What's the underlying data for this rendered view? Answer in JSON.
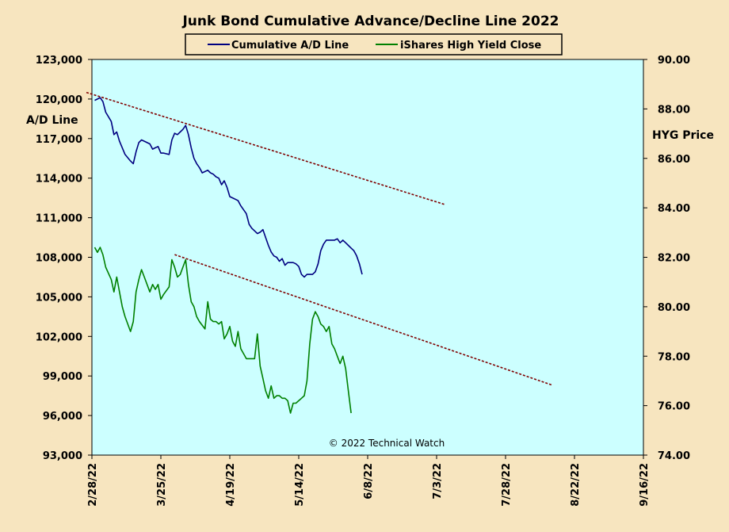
{
  "chart_data": {
    "type": "line",
    "title": "Junk Bond Cumulative  Advance/Decline  Line  2022",
    "ylabel_left": "A/D Line",
    "ylabel_right": "HYG Price",
    "annotation": "© 2022 Technical Watch",
    "legend_position": "top",
    "grid": false,
    "plot_background": "#ccffff",
    "y_left": {
      "min": 93000,
      "max": 123000,
      "ticks": [
        "93,000",
        "96,000",
        "99,000",
        "102,000",
        "105,000",
        "108,000",
        "111,000",
        "114,000",
        "117,000",
        "120,000",
        "123,000"
      ]
    },
    "y_right": {
      "min": 74,
      "max": 90,
      "ticks": [
        "74.00",
        "76.00",
        "78.00",
        "80.00",
        "82.00",
        "84.00",
        "86.00",
        "88.00",
        "90.00"
      ]
    },
    "x": {
      "min": "2022-02-28",
      "max": "2022-09-16",
      "ticks": [
        "2/28/22",
        "3/25/22",
        "4/19/22",
        "5/14/22",
        "6/8/22",
        "7/3/22",
        "7/28/22",
        "8/22/22",
        "9/16/22"
      ]
    },
    "series": [
      {
        "name": "Cumulative A/D Line",
        "axis": "left",
        "color": "#000080",
        "points": [
          [
            "2022-03-01",
            119900
          ],
          [
            "2022-03-02",
            120000
          ],
          [
            "2022-03-03",
            120100
          ],
          [
            "2022-03-04",
            119800
          ],
          [
            "2022-03-05",
            119000
          ],
          [
            "2022-03-07",
            118300
          ],
          [
            "2022-03-08",
            117300
          ],
          [
            "2022-03-09",
            117500
          ],
          [
            "2022-03-10",
            116800
          ],
          [
            "2022-03-11",
            116300
          ],
          [
            "2022-03-12",
            115800
          ],
          [
            "2022-03-14",
            115300
          ],
          [
            "2022-03-15",
            115100
          ],
          [
            "2022-03-16",
            116000
          ],
          [
            "2022-03-17",
            116700
          ],
          [
            "2022-03-18",
            116900
          ],
          [
            "2022-03-19",
            116800
          ],
          [
            "2022-03-21",
            116600
          ],
          [
            "2022-03-22",
            116200
          ],
          [
            "2022-03-23",
            116300
          ],
          [
            "2022-03-24",
            116400
          ],
          [
            "2022-03-25",
            115900
          ],
          [
            "2022-03-26",
            115900
          ],
          [
            "2022-03-28",
            115800
          ],
          [
            "2022-03-29",
            116900
          ],
          [
            "2022-03-30",
            117400
          ],
          [
            "2022-03-31",
            117300
          ],
          [
            "2022-04-01",
            117500
          ],
          [
            "2022-04-02",
            117700
          ],
          [
            "2022-04-03",
            118000
          ],
          [
            "2022-04-04",
            117300
          ],
          [
            "2022-04-05",
            116300
          ],
          [
            "2022-04-06",
            115500
          ],
          [
            "2022-04-07",
            115100
          ],
          [
            "2022-04-08",
            114800
          ],
          [
            "2022-04-09",
            114400
          ],
          [
            "2022-04-11",
            114600
          ],
          [
            "2022-04-12",
            114400
          ],
          [
            "2022-04-13",
            114300
          ],
          [
            "2022-04-14",
            114100
          ],
          [
            "2022-04-15",
            114000
          ],
          [
            "2022-04-16",
            113500
          ],
          [
            "2022-04-17",
            113800
          ],
          [
            "2022-04-18",
            113300
          ],
          [
            "2022-04-19",
            112600
          ],
          [
            "2022-04-20",
            112500
          ],
          [
            "2022-04-21",
            112400
          ],
          [
            "2022-04-22",
            112300
          ],
          [
            "2022-04-23",
            111900
          ],
          [
            "2022-04-25",
            111300
          ],
          [
            "2022-04-26",
            110500
          ],
          [
            "2022-04-27",
            110200
          ],
          [
            "2022-04-28",
            110000
          ],
          [
            "2022-04-29",
            109800
          ],
          [
            "2022-04-30",
            109900
          ],
          [
            "2022-05-01",
            110100
          ],
          [
            "2022-05-02",
            109500
          ],
          [
            "2022-05-03",
            108900
          ],
          [
            "2022-05-04",
            108400
          ],
          [
            "2022-05-05",
            108100
          ],
          [
            "2022-05-06",
            108000
          ],
          [
            "2022-05-07",
            107700
          ],
          [
            "2022-05-08",
            107900
          ],
          [
            "2022-05-09",
            107400
          ],
          [
            "2022-05-10",
            107600
          ],
          [
            "2022-05-11",
            107600
          ],
          [
            "2022-05-12",
            107600
          ],
          [
            "2022-05-13",
            107500
          ],
          [
            "2022-05-14",
            107300
          ],
          [
            "2022-05-15",
            106700
          ],
          [
            "2022-05-16",
            106500
          ],
          [
            "2022-05-17",
            106700
          ],
          [
            "2022-05-18",
            106700
          ],
          [
            "2022-05-19",
            106700
          ],
          [
            "2022-05-20",
            106900
          ],
          [
            "2022-05-21",
            107500
          ],
          [
            "2022-05-22",
            108500
          ],
          [
            "2022-05-23",
            109000
          ],
          [
            "2022-05-24",
            109300
          ],
          [
            "2022-05-25",
            109300
          ],
          [
            "2022-05-26",
            109300
          ],
          [
            "2022-05-27",
            109300
          ],
          [
            "2022-05-28",
            109400
          ],
          [
            "2022-05-29",
            109100
          ],
          [
            "2022-05-30",
            109300
          ],
          [
            "2022-05-31",
            109100
          ],
          [
            "2022-06-01",
            108900
          ],
          [
            "2022-06-02",
            108700
          ],
          [
            "2022-06-03",
            108500
          ],
          [
            "2022-06-04",
            108100
          ],
          [
            "2022-06-05",
            107500
          ],
          [
            "2022-06-06",
            106700
          ]
        ]
      },
      {
        "name": "iShares High Yield Close",
        "axis": "right",
        "color": "#008000",
        "points": [
          [
            "2022-03-01",
            82.4
          ],
          [
            "2022-03-02",
            82.2
          ],
          [
            "2022-03-03",
            82.4
          ],
          [
            "2022-03-04",
            82.1
          ],
          [
            "2022-03-05",
            81.6
          ],
          [
            "2022-03-07",
            81.1
          ],
          [
            "2022-03-08",
            80.6
          ],
          [
            "2022-03-09",
            81.2
          ],
          [
            "2022-03-10",
            80.6
          ],
          [
            "2022-03-11",
            80.0
          ],
          [
            "2022-03-12",
            79.6
          ],
          [
            "2022-03-14",
            79.0
          ],
          [
            "2022-03-15",
            79.4
          ],
          [
            "2022-03-16",
            80.6
          ],
          [
            "2022-03-17",
            81.1
          ],
          [
            "2022-03-18",
            81.5
          ],
          [
            "2022-03-19",
            81.2
          ],
          [
            "2022-03-21",
            80.6
          ],
          [
            "2022-03-22",
            80.9
          ],
          [
            "2022-03-23",
            80.7
          ],
          [
            "2022-03-24",
            80.9
          ],
          [
            "2022-03-25",
            80.3
          ],
          [
            "2022-03-26",
            80.5
          ],
          [
            "2022-03-28",
            80.8
          ],
          [
            "2022-03-29",
            81.9
          ],
          [
            "2022-03-30",
            81.6
          ],
          [
            "2022-03-31",
            81.2
          ],
          [
            "2022-04-01",
            81.3
          ],
          [
            "2022-04-02",
            81.6
          ],
          [
            "2022-04-03",
            81.9
          ],
          [
            "2022-04-04",
            80.9
          ],
          [
            "2022-04-05",
            80.2
          ],
          [
            "2022-04-06",
            80.0
          ],
          [
            "2022-04-07",
            79.6
          ],
          [
            "2022-04-08",
            79.4
          ],
          [
            "2022-04-10",
            79.1
          ],
          [
            "2022-04-11",
            80.2
          ],
          [
            "2022-04-12",
            79.5
          ],
          [
            "2022-04-13",
            79.4
          ],
          [
            "2022-04-14",
            79.4
          ],
          [
            "2022-04-15",
            79.3
          ],
          [
            "2022-04-16",
            79.4
          ],
          [
            "2022-04-17",
            78.7
          ],
          [
            "2022-04-18",
            78.9
          ],
          [
            "2022-04-19",
            79.2
          ],
          [
            "2022-04-20",
            78.6
          ],
          [
            "2022-04-21",
            78.4
          ],
          [
            "2022-04-22",
            79.0
          ],
          [
            "2022-04-23",
            78.3
          ],
          [
            "2022-04-24",
            78.1
          ],
          [
            "2022-04-25",
            77.9
          ],
          [
            "2022-04-26",
            77.9
          ],
          [
            "2022-04-27",
            77.9
          ],
          [
            "2022-04-28",
            77.9
          ],
          [
            "2022-04-29",
            78.9
          ],
          [
            "2022-04-30",
            77.6
          ],
          [
            "2022-05-01",
            77.1
          ],
          [
            "2022-05-02",
            76.6
          ],
          [
            "2022-05-03",
            76.3
          ],
          [
            "2022-05-04",
            76.8
          ],
          [
            "2022-05-05",
            76.3
          ],
          [
            "2022-05-06",
            76.4
          ],
          [
            "2022-05-07",
            76.4
          ],
          [
            "2022-05-08",
            76.3
          ],
          [
            "2022-05-09",
            76.3
          ],
          [
            "2022-05-10",
            76.2
          ],
          [
            "2022-05-11",
            75.7
          ],
          [
            "2022-05-12",
            76.1
          ],
          [
            "2022-05-13",
            76.1
          ],
          [
            "2022-05-14",
            76.2
          ],
          [
            "2022-05-15",
            76.3
          ],
          [
            "2022-05-16",
            76.4
          ],
          [
            "2022-05-17",
            77.0
          ],
          [
            "2022-05-18",
            78.5
          ],
          [
            "2022-05-19",
            79.5
          ],
          [
            "2022-05-20",
            79.8
          ],
          [
            "2022-05-21",
            79.6
          ],
          [
            "2022-05-22",
            79.3
          ],
          [
            "2022-05-23",
            79.2
          ],
          [
            "2022-05-24",
            79.0
          ],
          [
            "2022-05-25",
            79.2
          ],
          [
            "2022-05-26",
            78.5
          ],
          [
            "2022-05-27",
            78.3
          ],
          [
            "2022-05-28",
            78.0
          ],
          [
            "2022-05-29",
            77.7
          ],
          [
            "2022-05-30",
            78.0
          ],
          [
            "2022-05-31",
            77.5
          ],
          [
            "2022-06-01",
            76.6
          ],
          [
            "2022-06-02",
            75.7
          ]
        ]
      }
    ],
    "trendlines": [
      {
        "axis": "left",
        "color": "#800000",
        "from": [
          "2022-02-26",
          120500
        ],
        "to": [
          "2022-07-06",
          112000
        ]
      },
      {
        "axis": "left",
        "color": "#800000",
        "from": [
          "2022-03-30",
          108200
        ],
        "to": [
          "2022-08-14",
          98300
        ]
      }
    ]
  }
}
